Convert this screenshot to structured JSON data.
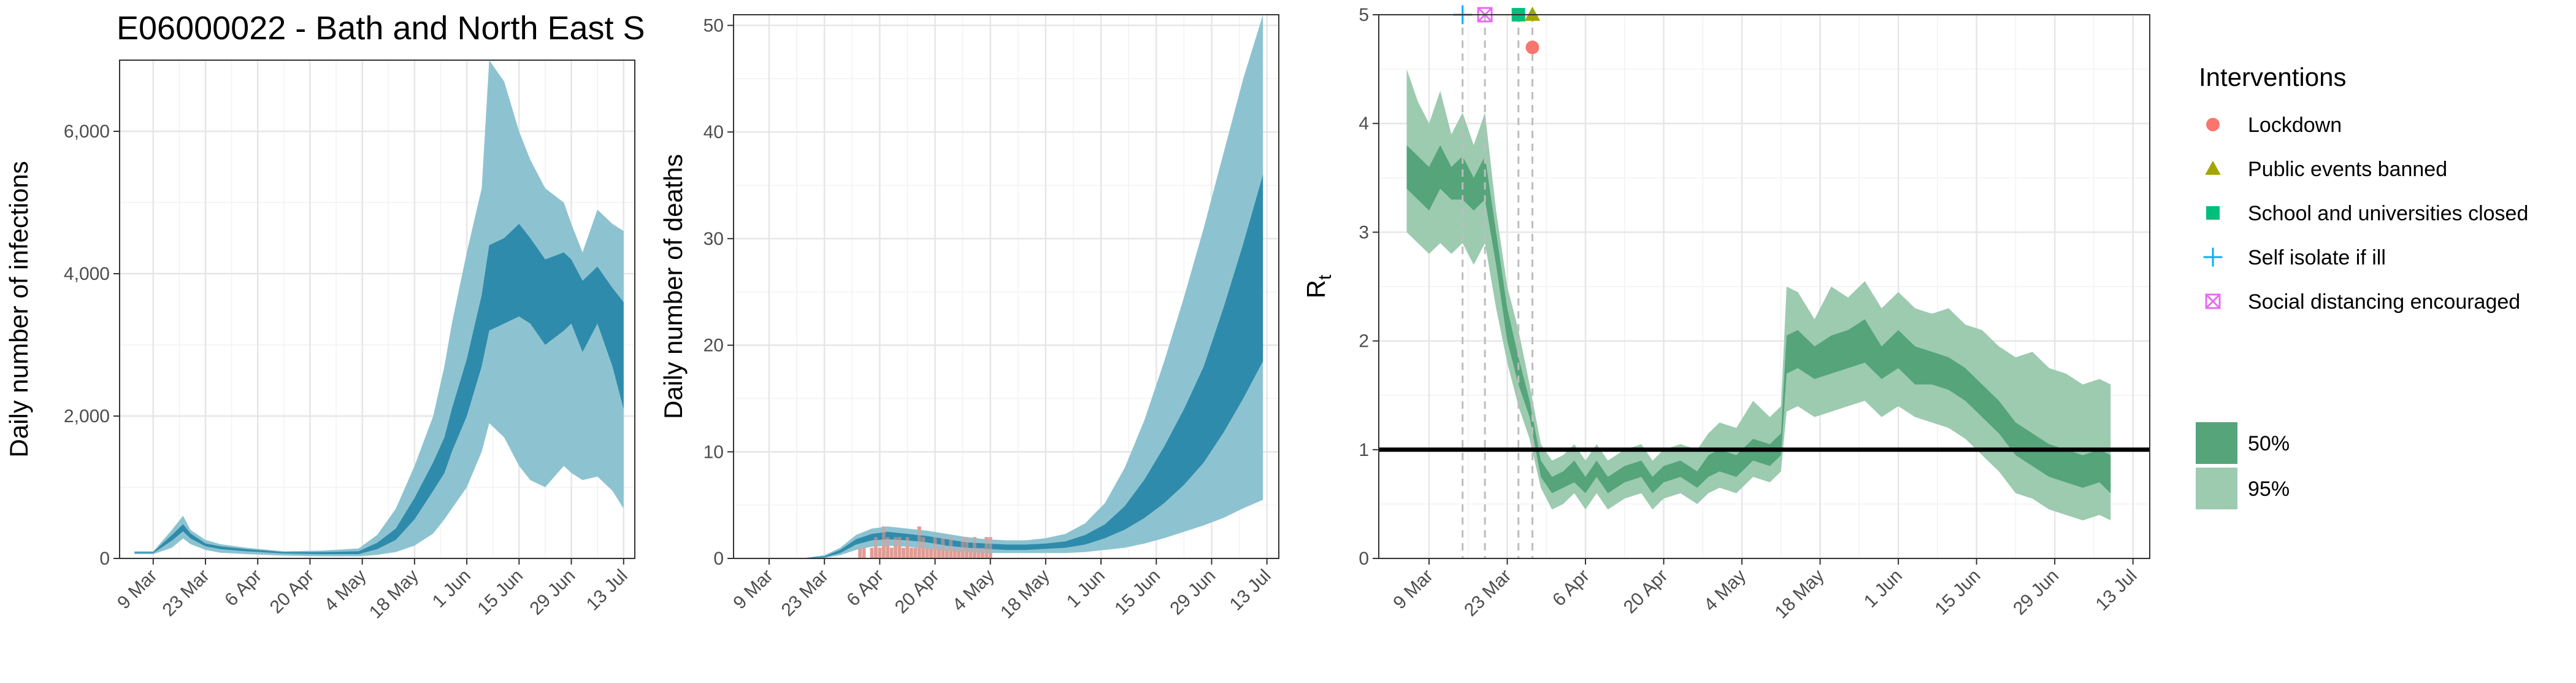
{
  "figure_title": "E06000022 - Bath and North East S",
  "colors": {
    "infection_95": "#8dc3d1",
    "infection_50": "#2f8bab",
    "rt_95": "#9ccbb0",
    "rt_50": "#55a47a",
    "observed_deaths": "#e29c96",
    "lockdown": "#f8766d",
    "public_events": "#a3a500",
    "schools": "#00bf7d",
    "self_isolate": "#00b0f6",
    "social_distancing": "#e76bf3"
  },
  "x_tick_labels": [
    "9 Mar",
    "23 Mar",
    "6 Apr",
    "20 Apr",
    "4 May",
    "18 May",
    "1 Jun",
    "15 Jun",
    "29 Jun",
    "13 Jul"
  ],
  "legend": {
    "interventions_title": "Interventions",
    "interventions": [
      {
        "label": "Lockdown",
        "shape": "circle",
        "color": "#f8766d"
      },
      {
        "label": "Public events banned",
        "shape": "triangle",
        "color": "#a3a500"
      },
      {
        "label": "School and universities closed",
        "shape": "square",
        "color": "#00bf7d"
      },
      {
        "label": "Self isolate if ill",
        "shape": "plus",
        "color": "#00b0f6"
      },
      {
        "label": "Social distancing encouraged",
        "shape": "boxx",
        "color": "#e76bf3"
      }
    ],
    "ci": [
      {
        "label": "50%",
        "color": "#55a47a"
      },
      {
        "label": "95%",
        "color": "#9ccbb0"
      }
    ]
  },
  "chart_data": [
    {
      "type": "area",
      "ylabel": "Daily number of infections",
      "x_unit": "days since 9 Mar 2020",
      "ylim": [
        0,
        7000
      ],
      "yticks": [
        0,
        2000,
        4000,
        6000
      ],
      "ytick_labels": [
        "0",
        "2,000",
        "4,000",
        "6,000"
      ],
      "x": [
        -5,
        0,
        5,
        8,
        10,
        14,
        18,
        25,
        35,
        45,
        55,
        60,
        65,
        70,
        75,
        78,
        80,
        84,
        88,
        90,
        94,
        98,
        101,
        105,
        110,
        112,
        115,
        119,
        123,
        126
      ],
      "band95_lo": [
        60,
        60,
        150,
        280,
        200,
        120,
        80,
        60,
        40,
        30,
        30,
        50,
        90,
        180,
        350,
        550,
        700,
        1000,
        1500,
        1900,
        1700,
        1300,
        1100,
        1000,
        1300,
        1200,
        1100,
        1150,
        950,
        700
      ],
      "band95_hi": [
        100,
        100,
        400,
        600,
        400,
        260,
        200,
        150,
        100,
        110,
        140,
        330,
        700,
        1300,
        2000,
        2700,
        3300,
        4300,
        5200,
        7000,
        6700,
        6000,
        5600,
        5200,
        5000,
        4700,
        4300,
        4900,
        4700,
        4600
      ],
      "band50_lo": [
        75,
        75,
        250,
        380,
        280,
        170,
        130,
        100,
        70,
        60,
        60,
        130,
        260,
        550,
        950,
        1200,
        1500,
        2000,
        2700,
        3200,
        3300,
        3400,
        3300,
        3000,
        3200,
        3300,
        2900,
        3300,
        2700,
        2100
      ],
      "band50_hi": [
        90,
        90,
        330,
        480,
        350,
        210,
        170,
        130,
        90,
        90,
        100,
        220,
        420,
        850,
        1350,
        1700,
        2100,
        2800,
        3700,
        4400,
        4500,
        4700,
        4500,
        4200,
        4300,
        4200,
        3900,
        4100,
        3800,
        3600
      ]
    },
    {
      "type": "area",
      "ylabel": "Daily number of deaths",
      "x_unit": "days since 9 Mar 2020",
      "ylim": [
        0,
        51
      ],
      "yticks": [
        0,
        10,
        20,
        30,
        40,
        50
      ],
      "ytick_labels": [
        "0",
        "10",
        "20",
        "30",
        "40",
        "50"
      ],
      "x": [
        0,
        8,
        14,
        18,
        22,
        26,
        30,
        35,
        40,
        45,
        50,
        55,
        60,
        65,
        70,
        75,
        80,
        85,
        90,
        95,
        100,
        105,
        110,
        115,
        120,
        125
      ],
      "band95_lo": [
        0,
        0,
        0.05,
        0.3,
        0.8,
        1.1,
        1.2,
        1.1,
        0.9,
        0.7,
        0.6,
        0.5,
        0.5,
        0.5,
        0.5,
        0.5,
        0.6,
        0.8,
        1.0,
        1.4,
        1.9,
        2.5,
        3.1,
        3.8,
        4.7,
        5.5
      ],
      "band95_hi": [
        0,
        0,
        0.3,
        1.0,
        2.2,
        2.8,
        3.0,
        2.8,
        2.6,
        2.3,
        2.0,
        1.8,
        1.7,
        1.7,
        1.9,
        2.3,
        3.3,
        5.2,
        8.5,
        13.0,
        18.5,
        24.5,
        31.0,
        38.0,
        45.0,
        51.0
      ],
      "band50_lo": [
        0,
        0,
        0.1,
        0.5,
        1.3,
        1.7,
        1.8,
        1.7,
        1.5,
        1.2,
        1.0,
        0.9,
        0.8,
        0.8,
        0.9,
        1.0,
        1.3,
        1.9,
        2.7,
        3.8,
        5.2,
        6.9,
        9.0,
        11.8,
        15.0,
        18.5
      ],
      "band50_hi": [
        0,
        0,
        0.2,
        0.8,
        1.8,
        2.3,
        2.5,
        2.3,
        2.1,
        1.8,
        1.5,
        1.4,
        1.3,
        1.3,
        1.4,
        1.6,
        2.2,
        3.2,
        4.9,
        7.4,
        10.5,
        14.0,
        18.0,
        23.5,
        29.5,
        36.0
      ],
      "observed_x": [
        23,
        24,
        25,
        26,
        27,
        28,
        29,
        30,
        31,
        32,
        33,
        34,
        35,
        36,
        37,
        38,
        39,
        40,
        41,
        42,
        43,
        44,
        45,
        46,
        47,
        48,
        49,
        50,
        51,
        52,
        53,
        54,
        55,
        56
      ],
      "observed_y": [
        1,
        1,
        0,
        1,
        2,
        1,
        3,
        2,
        1,
        2,
        2,
        1,
        2,
        1,
        1,
        3,
        2,
        1,
        1,
        2,
        1,
        2,
        1,
        2,
        1,
        1,
        2,
        2,
        1,
        2,
        1,
        1,
        2,
        2
      ]
    },
    {
      "type": "area",
      "ylabel": "R",
      "ylabel_subscript": "t",
      "x_unit": "days since 9 Mar 2020",
      "ylim": [
        0,
        5
      ],
      "yticks": [
        0,
        1,
        2,
        3,
        4,
        5
      ],
      "ytick_labels": [
        "0",
        "1",
        "2",
        "3",
        "4",
        "5"
      ],
      "reference_line": 1,
      "intervention_days": [
        6,
        10,
        16,
        18.5
      ],
      "x": [
        -4,
        -2,
        0,
        2,
        4,
        6,
        8,
        10,
        12,
        14,
        16,
        18,
        20,
        22,
        24,
        26,
        28,
        30,
        32,
        35,
        38,
        40,
        42,
        45,
        48,
        50,
        52,
        55,
        58,
        61,
        63,
        64,
        66,
        69,
        72,
        75,
        78,
        81,
        84,
        87,
        90,
        93,
        96,
        99,
        102,
        105,
        108,
        111,
        114,
        117,
        120,
        122
      ],
      "band95_lo": [
        3.0,
        2.9,
        2.8,
        2.9,
        2.8,
        2.9,
        2.7,
        2.9,
        2.3,
        1.8,
        1.4,
        1.1,
        0.65,
        0.45,
        0.5,
        0.6,
        0.45,
        0.6,
        0.45,
        0.55,
        0.6,
        0.45,
        0.55,
        0.6,
        0.5,
        0.6,
        0.65,
        0.6,
        0.75,
        0.7,
        0.8,
        1.35,
        1.4,
        1.3,
        1.35,
        1.4,
        1.45,
        1.3,
        1.4,
        1.3,
        1.25,
        1.2,
        1.1,
        0.95,
        0.8,
        0.6,
        0.55,
        0.45,
        0.4,
        0.35,
        0.4,
        0.35
      ],
      "band95_hi": [
        4.5,
        4.2,
        4.0,
        4.3,
        3.9,
        4.1,
        3.8,
        4.1,
        3.2,
        2.5,
        2.1,
        1.6,
        1.05,
        0.9,
        0.95,
        1.05,
        0.9,
        1.05,
        0.9,
        1.0,
        1.05,
        0.9,
        1.0,
        1.05,
        1.0,
        1.15,
        1.25,
        1.2,
        1.45,
        1.3,
        1.4,
        2.5,
        2.45,
        2.2,
        2.5,
        2.4,
        2.55,
        2.3,
        2.45,
        2.3,
        2.25,
        2.3,
        2.15,
        2.1,
        1.95,
        1.85,
        1.9,
        1.75,
        1.7,
        1.6,
        1.65,
        1.6
      ],
      "band50_lo": [
        3.4,
        3.3,
        3.2,
        3.4,
        3.3,
        3.3,
        3.2,
        3.3,
        2.7,
        2.0,
        1.6,
        1.3,
        0.75,
        0.6,
        0.65,
        0.7,
        0.6,
        0.75,
        0.6,
        0.7,
        0.75,
        0.6,
        0.7,
        0.75,
        0.65,
        0.75,
        0.8,
        0.75,
        0.9,
        0.85,
        0.95,
        1.7,
        1.75,
        1.65,
        1.7,
        1.75,
        1.8,
        1.65,
        1.75,
        1.6,
        1.6,
        1.55,
        1.45,
        1.3,
        1.15,
        0.95,
        0.85,
        0.75,
        0.7,
        0.65,
        0.7,
        0.6
      ],
      "band50_hi": [
        3.8,
        3.7,
        3.6,
        3.8,
        3.6,
        3.7,
        3.5,
        3.7,
        3.0,
        2.3,
        1.85,
        1.45,
        0.9,
        0.75,
        0.8,
        0.9,
        0.75,
        0.9,
        0.75,
        0.85,
        0.9,
        0.75,
        0.85,
        0.9,
        0.8,
        0.95,
        1.0,
        0.95,
        1.1,
        1.05,
        1.15,
        2.05,
        2.1,
        1.95,
        2.05,
        2.1,
        2.2,
        1.95,
        2.1,
        1.95,
        1.9,
        1.85,
        1.75,
        1.6,
        1.45,
        1.25,
        1.15,
        1.05,
        1.0,
        0.95,
        1.0,
        0.95
      ],
      "markers": [
        {
          "label": "Self isolate if ill",
          "x": 6,
          "y": 5.0
        },
        {
          "label": "Social distancing encouraged",
          "x": 10,
          "y": 5.0
        },
        {
          "label": "School and universities closed",
          "x": 16,
          "y": 5.0
        },
        {
          "label": "Public events banned",
          "x": 18.5,
          "y": 5.0
        },
        {
          "label": "Lockdown",
          "x": 18.5,
          "y": 4.7
        }
      ]
    }
  ]
}
